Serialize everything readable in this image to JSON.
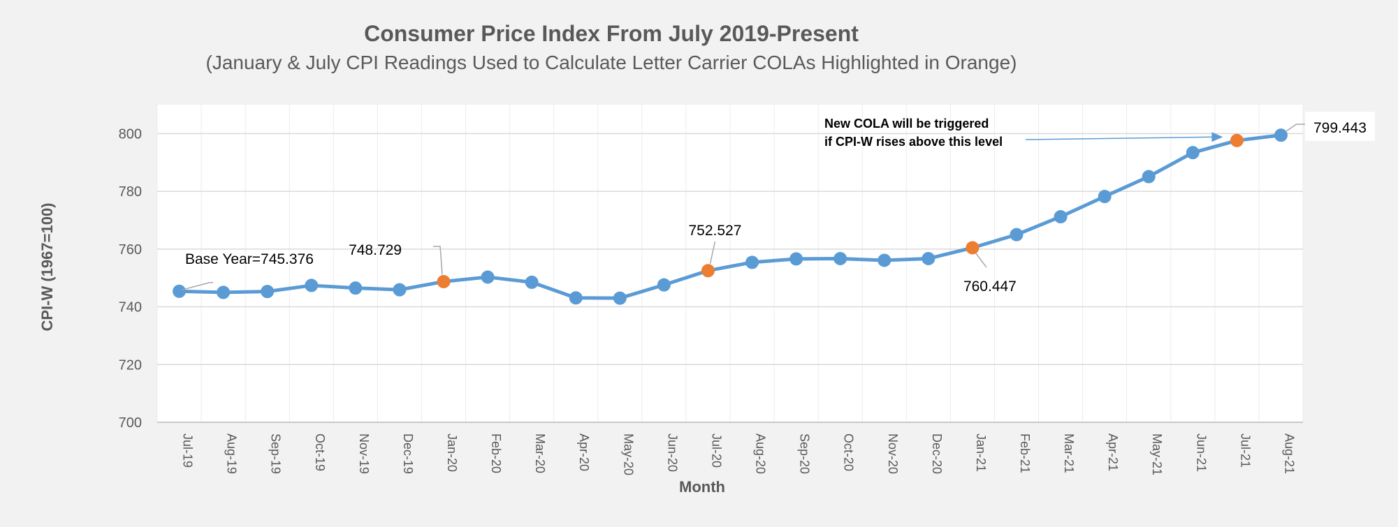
{
  "chart_data": {
    "type": "line",
    "title": "Consumer Price Index From July 2019-Present",
    "subtitle": "(January & July CPI Readings Used to Calculate Letter Carrier COLAs Highlighted in Orange)",
    "xlabel": "Month",
    "ylabel": "CPI-W (1967=100)",
    "ylim": [
      700,
      810
    ],
    "yticks": [
      700,
      720,
      740,
      760,
      780,
      800
    ],
    "grid": true,
    "legend": "none",
    "categories": [
      "Jul-19",
      "Aug-19",
      "Sep-19",
      "Oct-19",
      "Nov-19",
      "Dec-19",
      "Jan-20",
      "Feb-20",
      "Mar-20",
      "Apr-20",
      "May-20",
      "Jun-20",
      "Jul-20",
      "Aug-20",
      "Sep-20",
      "Oct-20",
      "Nov-20",
      "Dec-20",
      "Jan-21",
      "Feb-21",
      "Mar-21",
      "Apr-21",
      "May-21",
      "Jun-21",
      "Jul-21",
      "Aug-21"
    ],
    "values": [
      745.376,
      745.0,
      745.3,
      747.4,
      746.5,
      745.9,
      748.729,
      750.3,
      748.5,
      743.1,
      743.0,
      747.6,
      752.527,
      755.4,
      756.6,
      756.7,
      756.1,
      756.7,
      760.447,
      765.0,
      771.2,
      778.2,
      785.1,
      793.4,
      797.6,
      799.443
    ],
    "highlighted_indices": [
      6,
      12,
      18,
      24
    ],
    "colors": {
      "line": "#5b9bd5",
      "highlight": "#ed7d31",
      "gridline": "#d9d9d9",
      "plot_background": "#ffffff",
      "page_background": "#f2f2f2",
      "text": "#595959"
    },
    "annotations": [
      {
        "text": "Base Year=745.376",
        "index": 0
      },
      {
        "text": "748.729",
        "index": 6
      },
      {
        "text": "752.527",
        "index": 12
      },
      {
        "text": "760.447",
        "index": 18
      },
      {
        "text": "799.443",
        "index": 25
      }
    ],
    "callout": {
      "lines": [
        "New COLA will be triggered",
        "if CPI-W rises above this level"
      ],
      "target_index": 24
    }
  }
}
